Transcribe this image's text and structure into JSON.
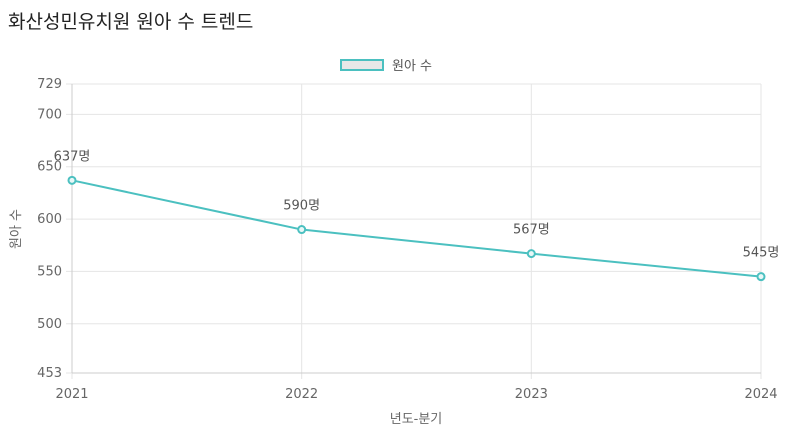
{
  "title": "화산성민유치원 원아 수 트렌드",
  "legend": {
    "label": "원아 수"
  },
  "colors": {
    "line": "#4bc0c0",
    "grid": "#e5e5e5",
    "text": "#666666"
  },
  "chart_data": {
    "type": "line",
    "title": "화산성민유치원 원아 수 트렌드",
    "xlabel": "년도-분기",
    "ylabel": "원아 수",
    "categories": [
      "2021",
      "2022",
      "2023",
      "2024"
    ],
    "series": [
      {
        "name": "원아 수",
        "values": [
          637,
          590,
          567,
          545
        ]
      }
    ],
    "data_labels": [
      "637명",
      "590명",
      "567명",
      "545명"
    ],
    "ylim": [
      453,
      729
    ],
    "yticks": [
      "453",
      "500",
      "550",
      "600",
      "650",
      "700",
      "729"
    ],
    "ytick_values": [
      453,
      500,
      550,
      600,
      650,
      700,
      729
    ],
    "grid": true,
    "legend_position": "top"
  }
}
